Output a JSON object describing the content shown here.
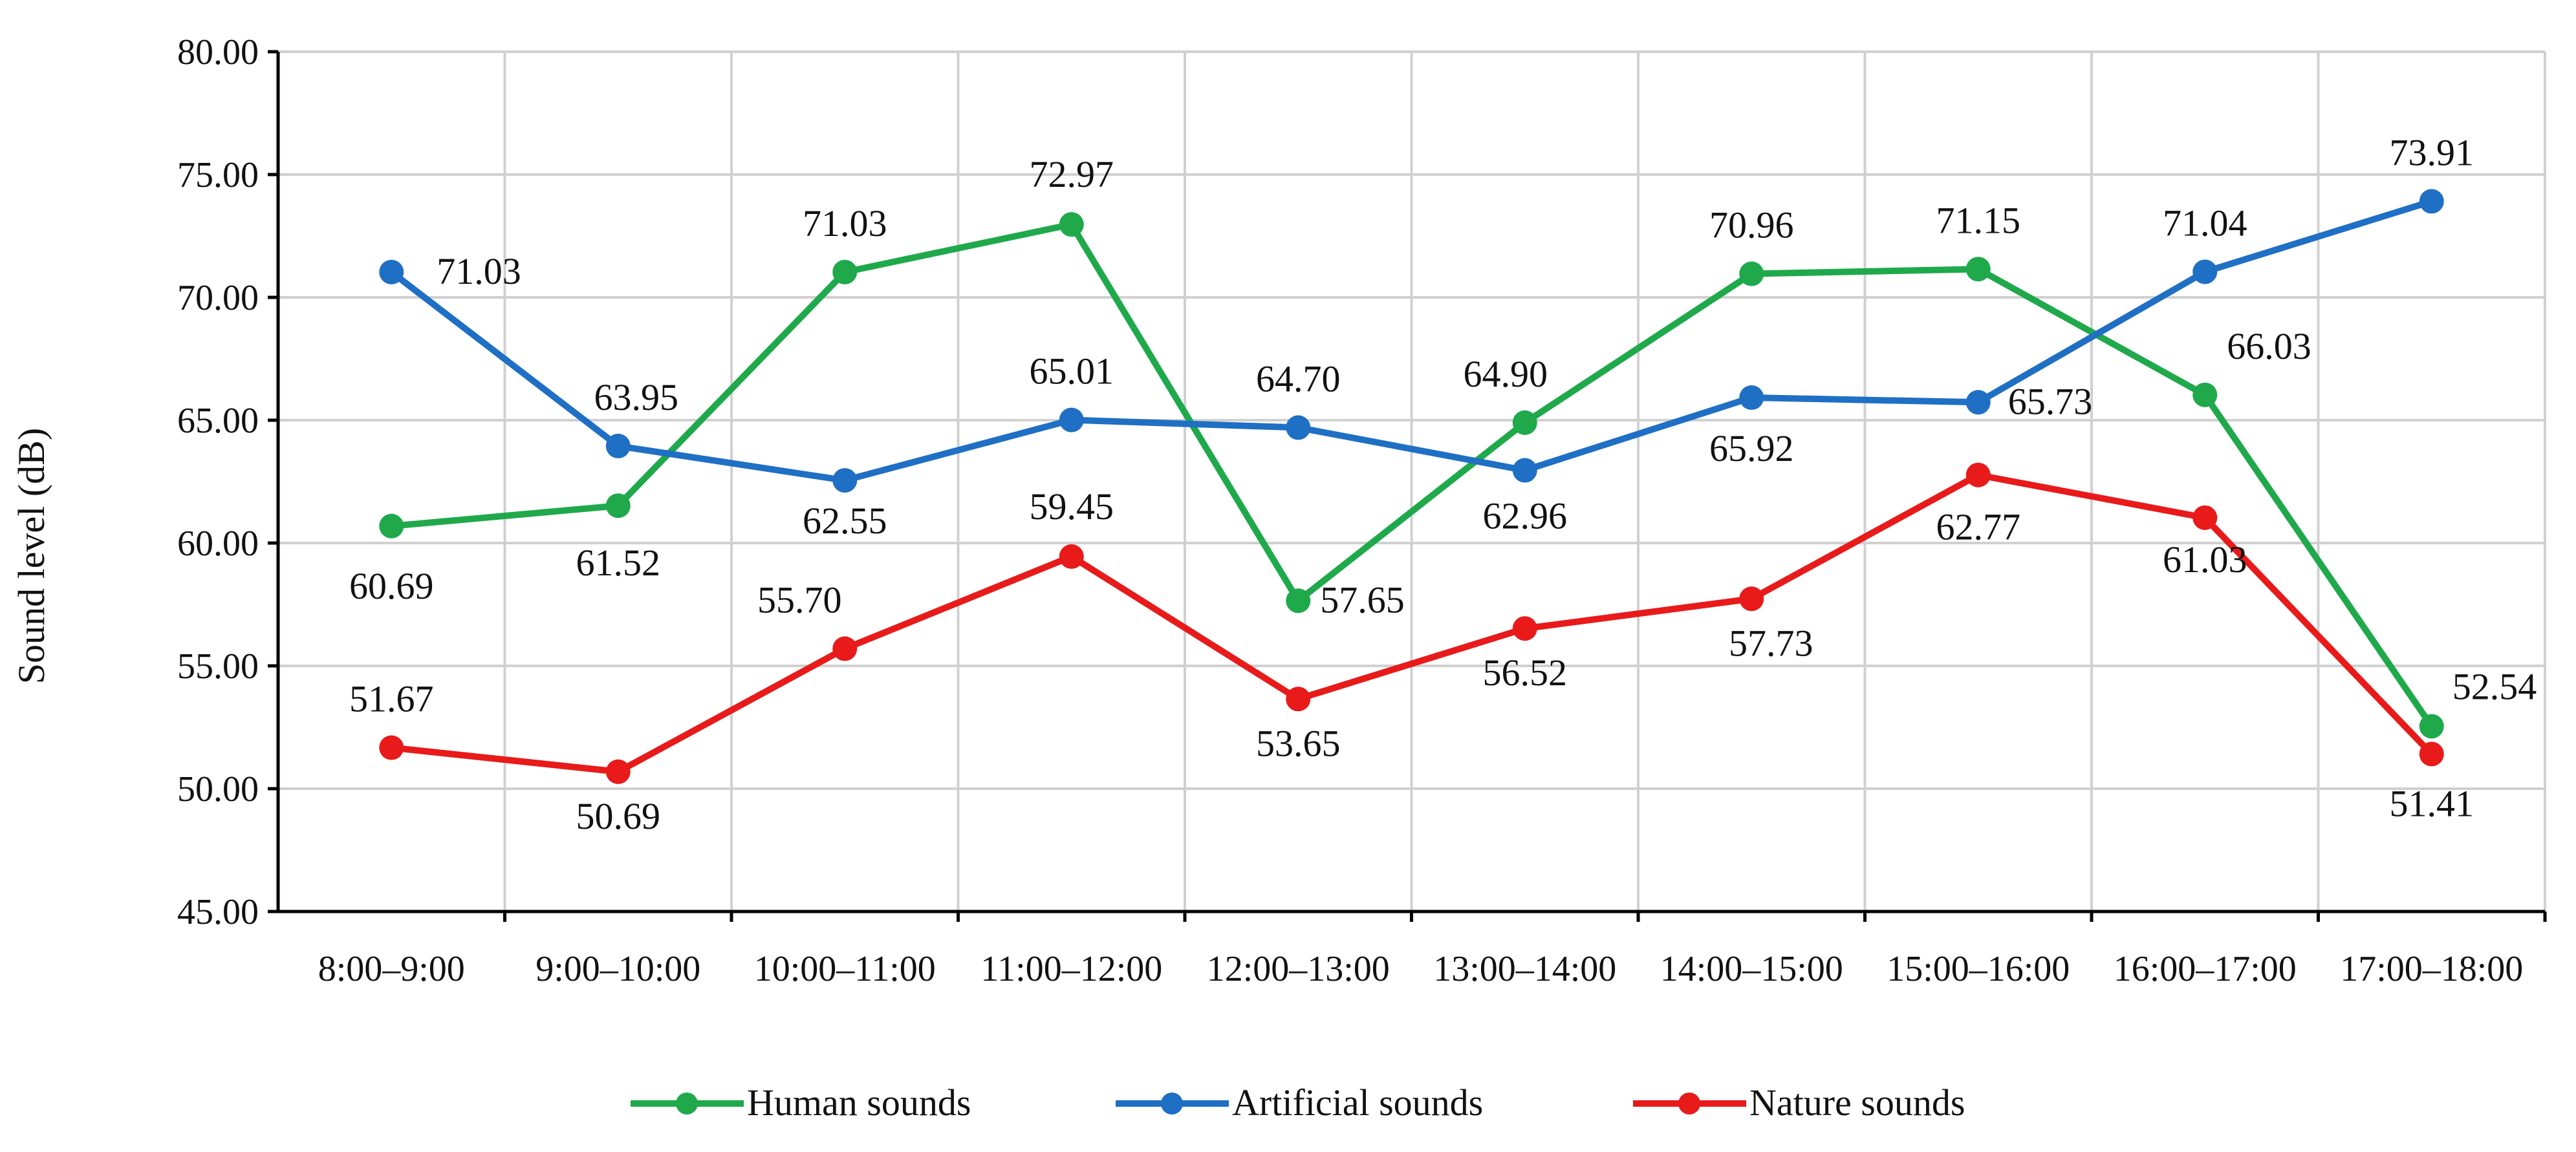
{
  "chart_data": {
    "type": "line",
    "categories": [
      "8:00–9:00",
      "9:00–10:00",
      "10:00–11:00",
      "11:00–12:00",
      "12:00–13:00",
      "13:00–14:00",
      "14:00–15:00",
      "15:00–16:00",
      "16:00–17:00",
      "17:00–18:00"
    ],
    "ylabel": "Sound level (dB)",
    "ylim": [
      45,
      80
    ],
    "yticks": [
      "45.00",
      "50.00",
      "55.00",
      "60.00",
      "65.00",
      "70.00",
      "75.00",
      "80.00"
    ],
    "grid": true,
    "legend_position": "bottom",
    "series": [
      {
        "name": "Human sounds",
        "color": "#1fa94b",
        "values": [
          60.69,
          61.52,
          71.03,
          72.97,
          57.65,
          64.9,
          70.96,
          71.15,
          66.03,
          52.54
        ],
        "labels": [
          "60.69",
          "61.52",
          "71.03",
          "72.97",
          "57.65",
          "64.90",
          "70.96",
          "71.15",
          "66.03",
          "52.54"
        ]
      },
      {
        "name": "Artificial sounds",
        "color": "#1f6fc4",
        "values": [
          71.03,
          63.95,
          62.55,
          65.01,
          64.7,
          62.96,
          65.92,
          65.73,
          71.04,
          73.91
        ],
        "labels": [
          "71.03",
          "63.95",
          "62.55",
          "65.01",
          "64.70",
          "62.96",
          "65.92",
          "65.73",
          "71.04",
          "73.91"
        ]
      },
      {
        "name": "Nature sounds",
        "color": "#e81a1a",
        "values": [
          51.67,
          50.69,
          55.7,
          59.45,
          53.65,
          56.52,
          57.73,
          62.77,
          61.03,
          51.41
        ],
        "labels": [
          "51.67",
          "50.69",
          "55.70",
          "59.45",
          "53.65",
          "56.52",
          "57.73",
          "62.77",
          "61.03",
          "51.41"
        ]
      }
    ]
  }
}
